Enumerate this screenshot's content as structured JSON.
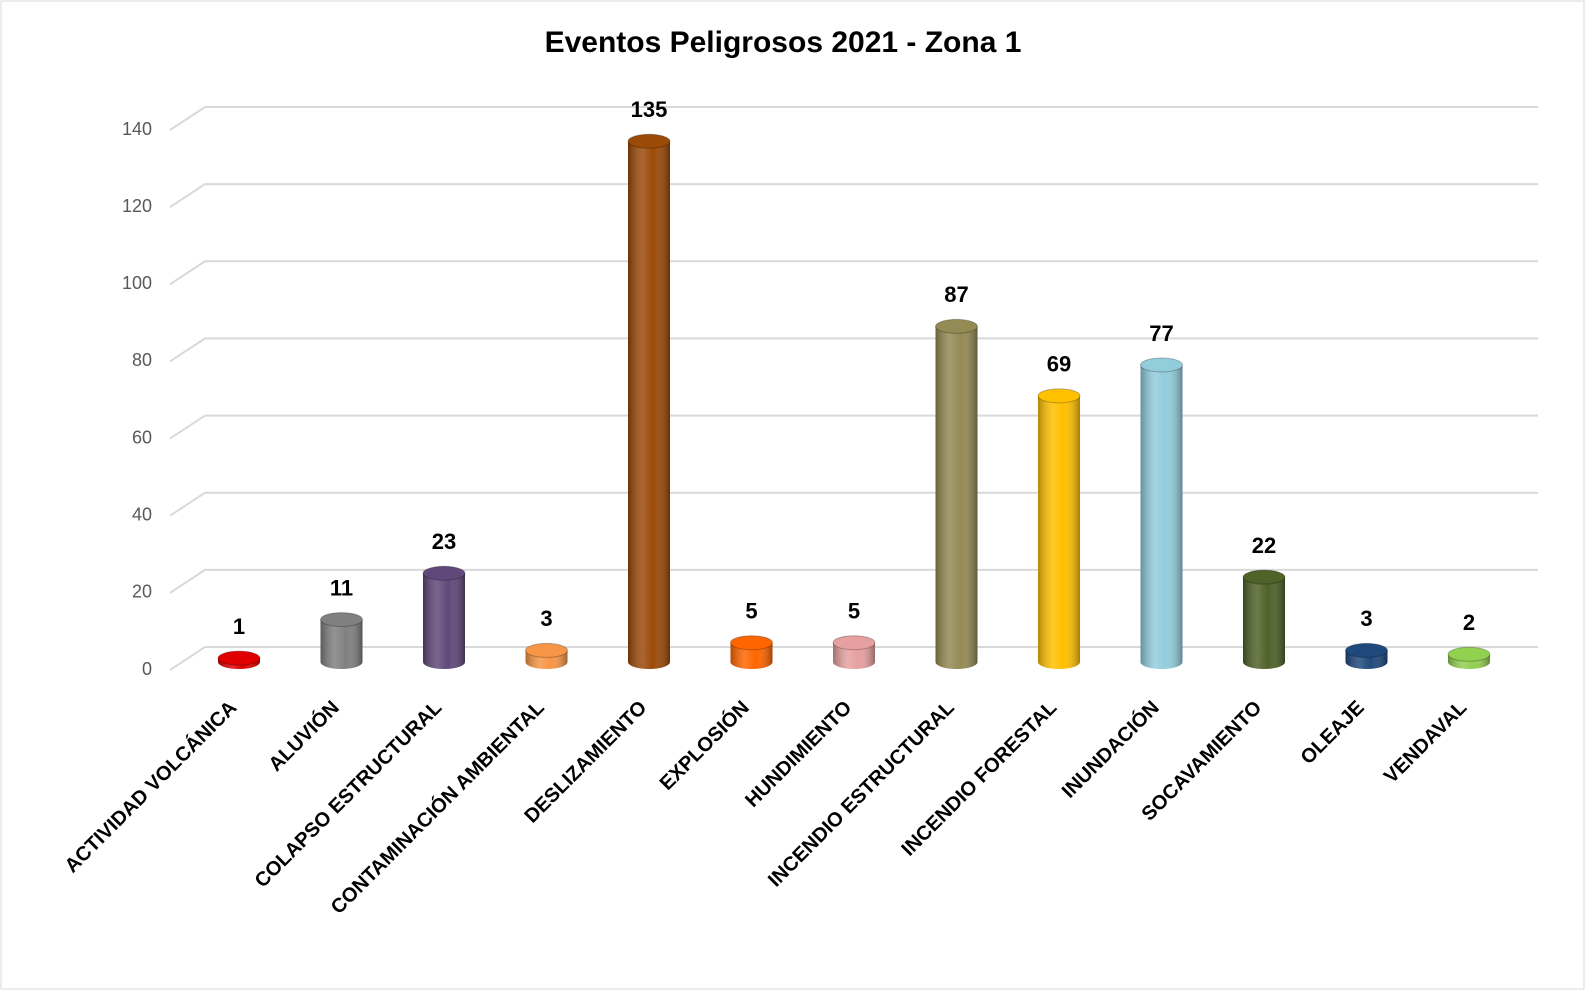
{
  "chart_data": {
    "type": "bar",
    "title": "Eventos Peligrosos 2021 - Zona 1",
    "categories": [
      "ACTIVIDAD VOLCÁNICA",
      "ALUVIÓN",
      "COLAPSO ESTRUCTURAL",
      "CONTAMINACIÓN AMBIENTAL",
      "DESLIZAMIENTO",
      "EXPLOSIÓN",
      "HUNDIMIENTO",
      "INCENDIO ESTRUCTURAL",
      "INCENDIO FORESTAL",
      "INUNDACIÓN",
      "SOCAVAMIENTO",
      "OLEAJE",
      "VENDAVAL"
    ],
    "values": [
      1,
      11,
      23,
      3,
      135,
      5,
      5,
      87,
      69,
      77,
      22,
      3,
      2
    ],
    "colors": [
      "#e00000",
      "#808080",
      "#60497a",
      "#f79646",
      "#9c4a08",
      "#ff6600",
      "#e6a0a0",
      "#948a54",
      "#ffc000",
      "#92cddc",
      "#4f6228",
      "#1f497d",
      "#92d050"
    ],
    "ylim": [
      0,
      140
    ],
    "yticks": [
      0,
      20,
      40,
      60,
      80,
      100,
      120,
      140
    ],
    "grid": true
  }
}
